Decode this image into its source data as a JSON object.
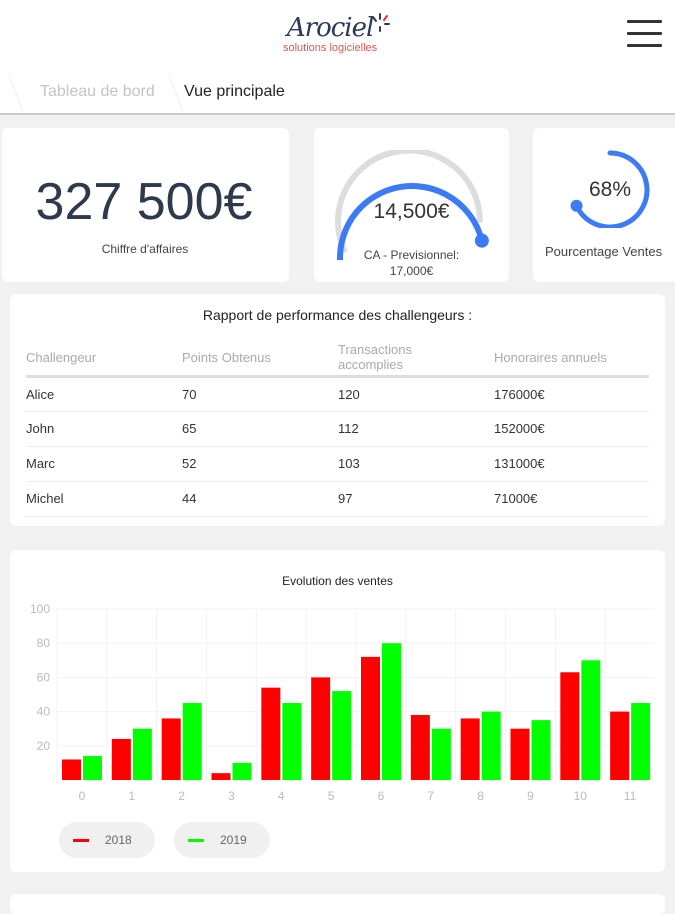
{
  "header": {
    "logo_text": "Aroc iel",
    "logo_main": "Arociel",
    "logo_sub": "solutions logicielles",
    "menu_icon": "hamburger-icon"
  },
  "breadcrumb": {
    "items": [
      "Tableau de bord",
      "Vue principale"
    ]
  },
  "kpis": {
    "revenue": {
      "value": "327 500€",
      "label": "Chiffre d'affaires"
    },
    "forecast": {
      "value": "14,500€",
      "label": "CA - Previsionnel:",
      "target": "17,000€",
      "progress": 0.853
    },
    "percentage": {
      "value": "68%",
      "label": "Pourcentage Ventes",
      "progress": 0.68
    }
  },
  "colors": {
    "accent": "#3d7af5",
    "s2018": "#ff0000",
    "s2019": "#00ff00"
  },
  "performance": {
    "title": "Rapport de performance des challengeurs :",
    "columns": [
      "Challengeur",
      "Points Obtenus",
      "Transactions accomplies",
      "Honoraires annuels"
    ],
    "rows": [
      [
        "Alice",
        "70",
        "120",
        "176000€"
      ],
      [
        "John",
        "65",
        "112",
        "152000€"
      ],
      [
        "Marc",
        "52",
        "103",
        "131000€"
      ],
      [
        "Michel",
        "44",
        "97",
        "71000€"
      ]
    ]
  },
  "chart_data": {
    "type": "bar",
    "title": "Evolution des ventes",
    "categories": [
      "0",
      "1",
      "2",
      "3",
      "4",
      "5",
      "6",
      "7",
      "8",
      "9",
      "10",
      "11"
    ],
    "series": [
      {
        "name": "2018",
        "values": [
          12,
          24,
          36,
          4,
          54,
          60,
          72,
          38,
          36,
          30,
          63,
          40
        ]
      },
      {
        "name": "2019",
        "values": [
          14,
          30,
          45,
          10,
          45,
          52,
          80,
          30,
          40,
          35,
          70,
          45
        ]
      }
    ],
    "ylim": [
      0,
      100
    ],
    "yticks": [
      "20",
      "40",
      "60",
      "80",
      "100"
    ],
    "grid": true,
    "legend": "bottom-left"
  }
}
